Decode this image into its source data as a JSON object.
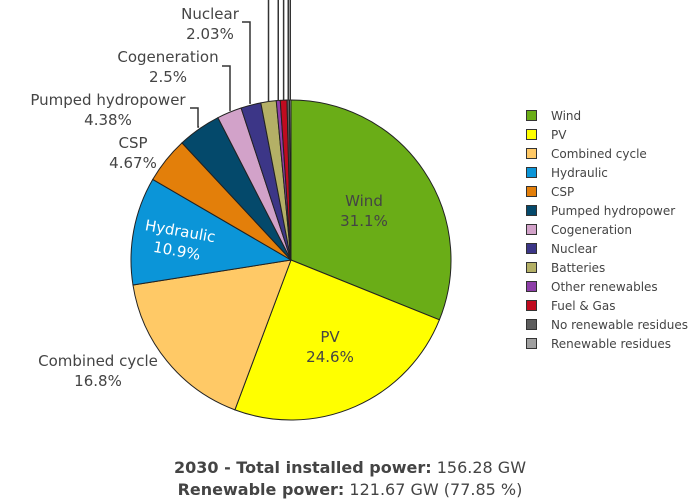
{
  "chart_data": {
    "type": "pie",
    "slices": [
      {
        "label": "Wind",
        "value": 31.1,
        "color": "#6aad17"
      },
      {
        "label": "PV",
        "value": 24.6,
        "color": "#ffff00"
      },
      {
        "label": "Combined cycle",
        "value": 16.8,
        "color": "#ffc966"
      },
      {
        "label": "Hydraulic",
        "value": 10.9,
        "color": "#0b95d8"
      },
      {
        "label": "CSP",
        "value": 4.67,
        "color": "#e37f0a"
      },
      {
        "label": "Pumped hydropower",
        "value": 4.38,
        "color": "#04496b"
      },
      {
        "label": "Cogeneration",
        "value": 2.5,
        "color": "#d2a2c9"
      },
      {
        "label": "Nuclear",
        "value": 2.03,
        "color": "#3c3687"
      },
      {
        "label": "Batteries",
        "value": 1.55,
        "color": "#b4b066"
      },
      {
        "label": "Other renewables",
        "value": 0.4,
        "color": "#8e3fa9"
      },
      {
        "label": "Fuel & Gas",
        "value": 0.67,
        "color": "#c00b1f"
      },
      {
        "label": "No renewable residues",
        "value": 0.25,
        "color": "#5d5d5d"
      },
      {
        "label": "Renewable residues",
        "value": 0.15,
        "color": "#a0a0a0"
      }
    ],
    "slice_labels": [
      {
        "label": "Wind",
        "percent": "31.1%"
      },
      {
        "label": "PV",
        "percent": "24.6%"
      },
      {
        "label": "Combined cycle",
        "percent": "16.8%"
      },
      {
        "label": "Hydraulic",
        "percent": "10.9%"
      },
      {
        "label": "CSP",
        "percent": "4.67%"
      },
      {
        "label": "Pumped hydropower",
        "percent": "4.38%"
      },
      {
        "label": "Cogeneration",
        "percent": "2.5%"
      },
      {
        "label": "Nuclear",
        "percent": "2.03%"
      }
    ],
    "legend_position": "right"
  },
  "footer": {
    "line1_label": "2030 - Total installed power:",
    "line1_value": " 156.28 GW",
    "line2_label": "Renewable power:",
    "line2_value": " 121.67 GW (77.85 %)"
  }
}
